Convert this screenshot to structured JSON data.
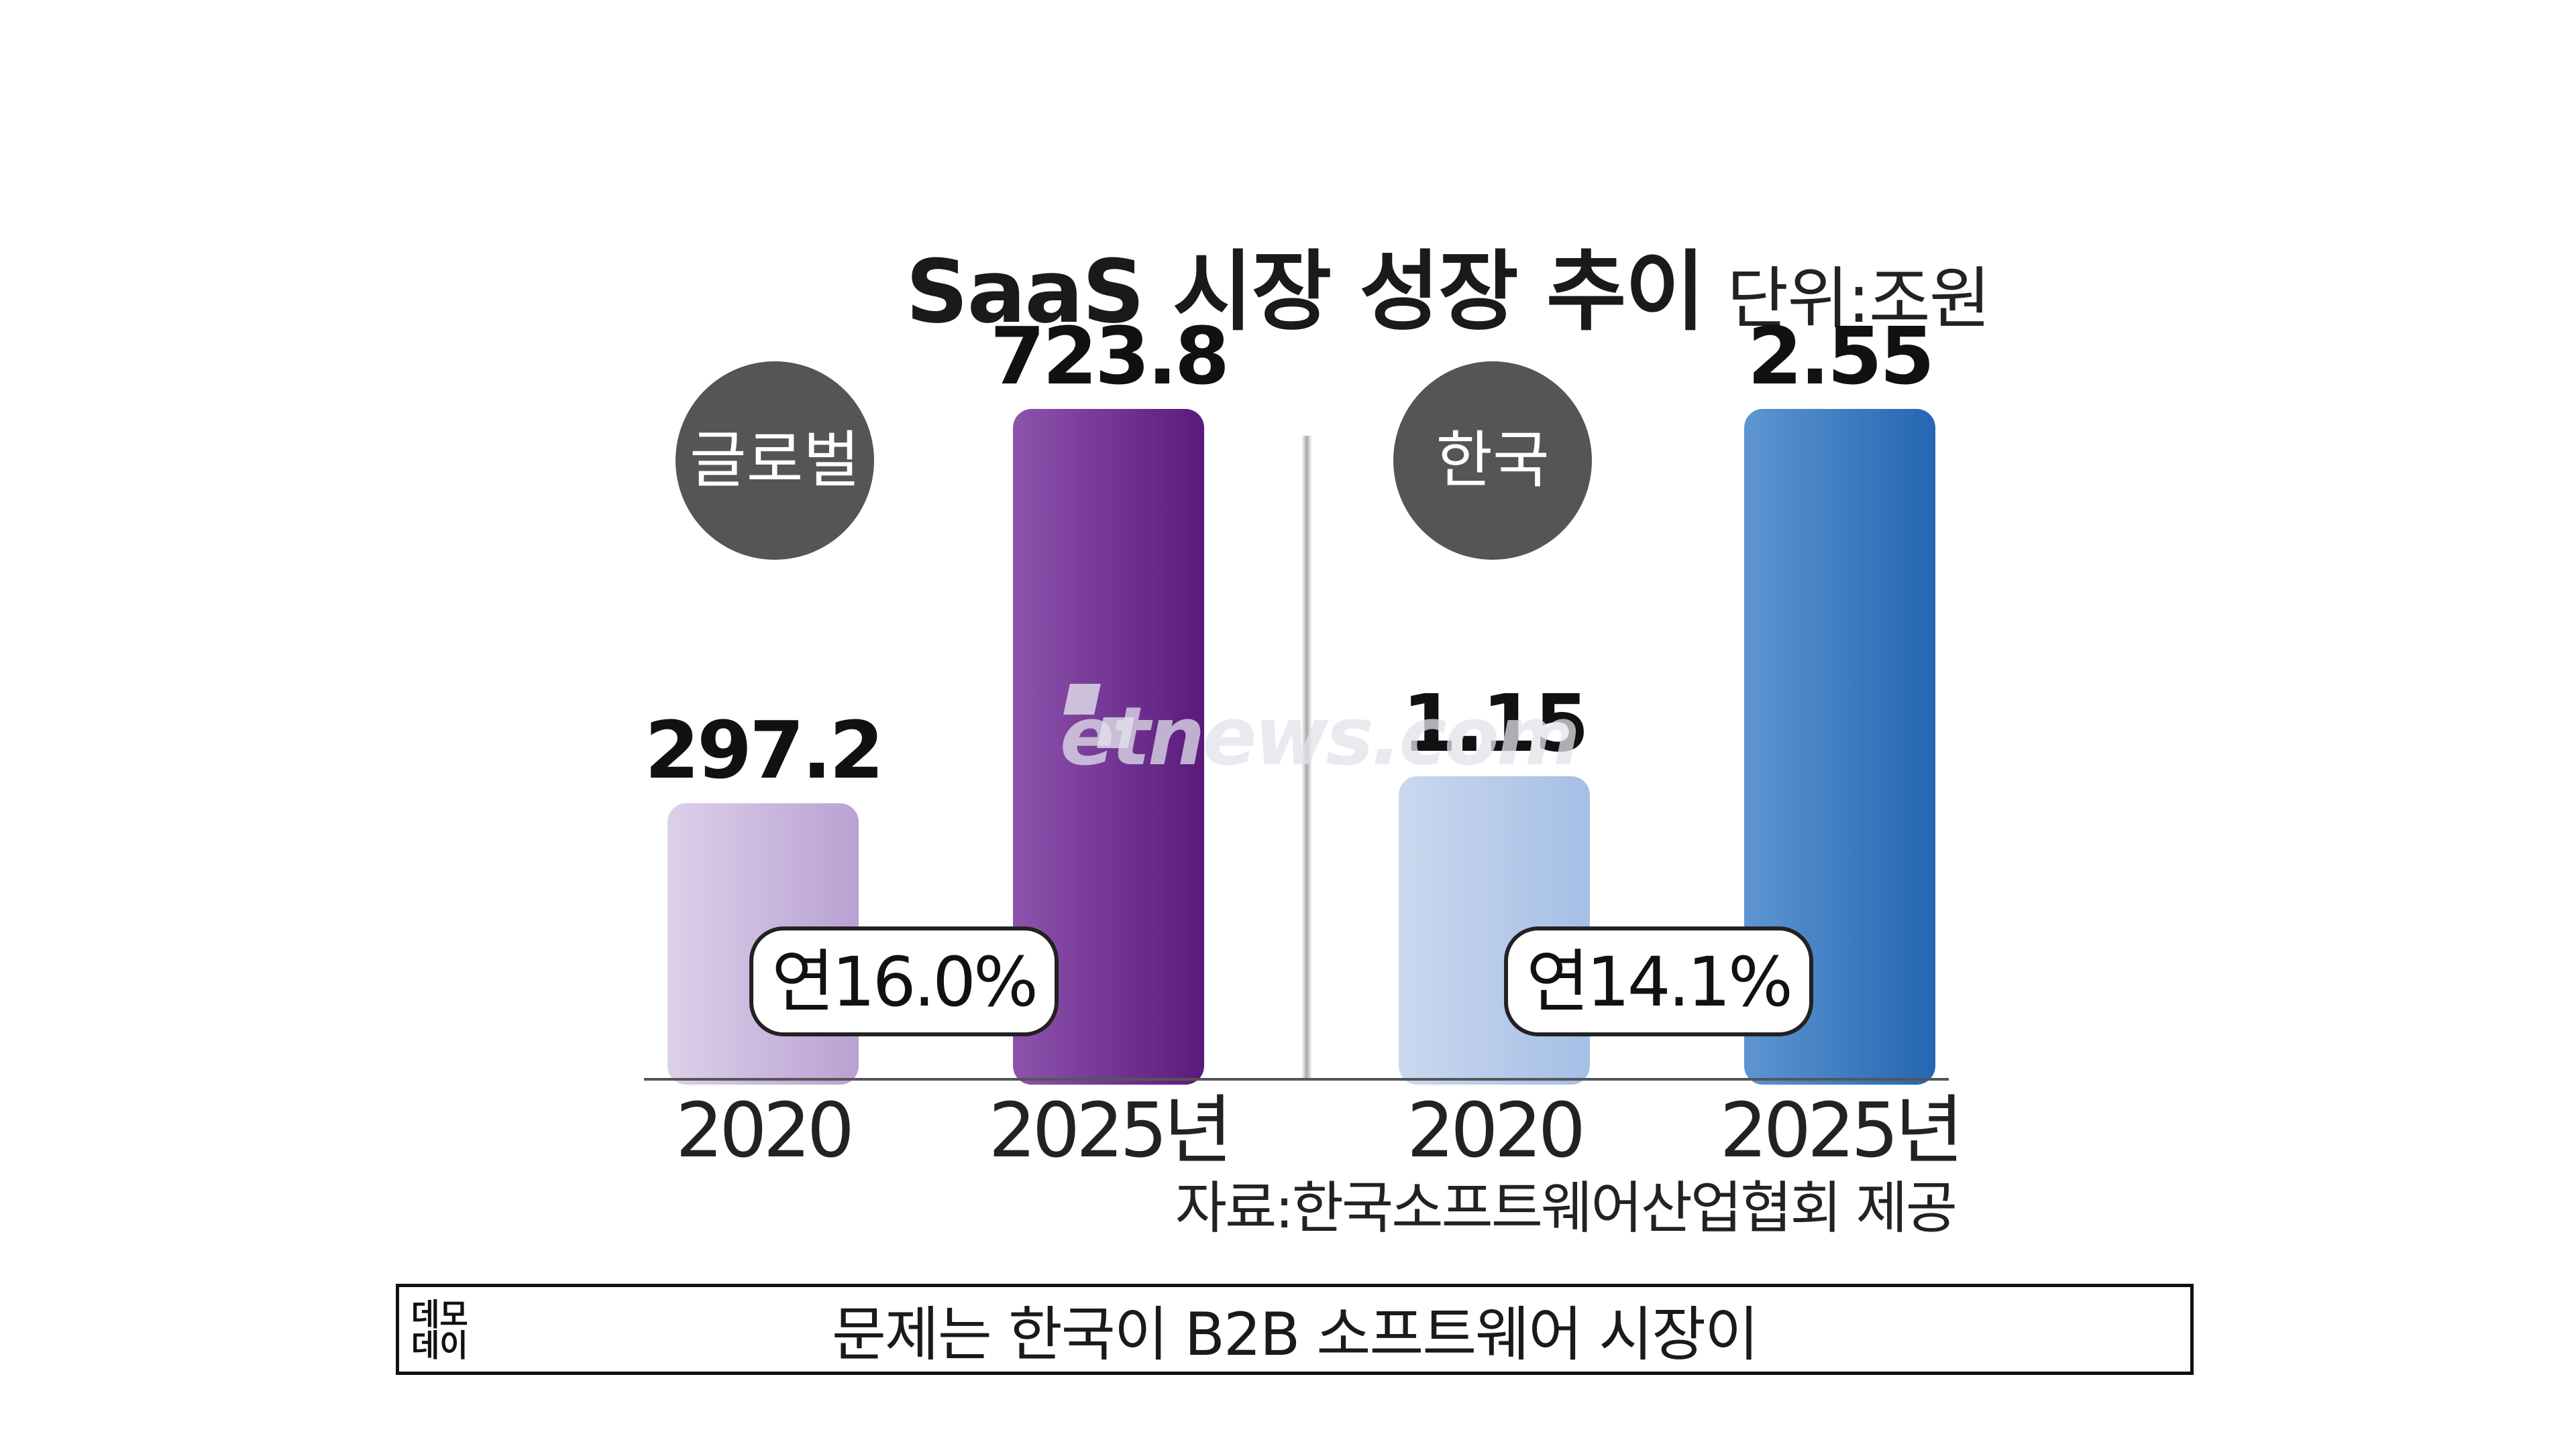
{
  "title": "SaaS 시장 성장 추이",
  "unit": "단위:조원",
  "source": "자료:한국소프트웨어산업협회 제공",
  "watermark": "etnews.com",
  "subtitle": "문제는 한국이 B2B 소프트웨어 시장이",
  "logo": "데모 데이",
  "chart_data": [
    {
      "type": "bar",
      "panel_label": "글로벌",
      "categories": [
        "2020",
        "2025년"
      ],
      "values": [
        297.2,
        723.8
      ],
      "value_labels": [
        "297.2",
        "723.8"
      ],
      "growth_label": "연16.0%",
      "colors": [
        "#cbbadd",
        "#6a2a8a"
      ]
    },
    {
      "type": "bar",
      "panel_label": "한국",
      "categories": [
        "2020",
        "2025년"
      ],
      "values": [
        1.15,
        2.55
      ],
      "value_labels": [
        "1.15",
        "2.55"
      ],
      "growth_label": "연14.1%",
      "colors": [
        "#b8cbe8",
        "#2e74bd"
      ]
    }
  ]
}
